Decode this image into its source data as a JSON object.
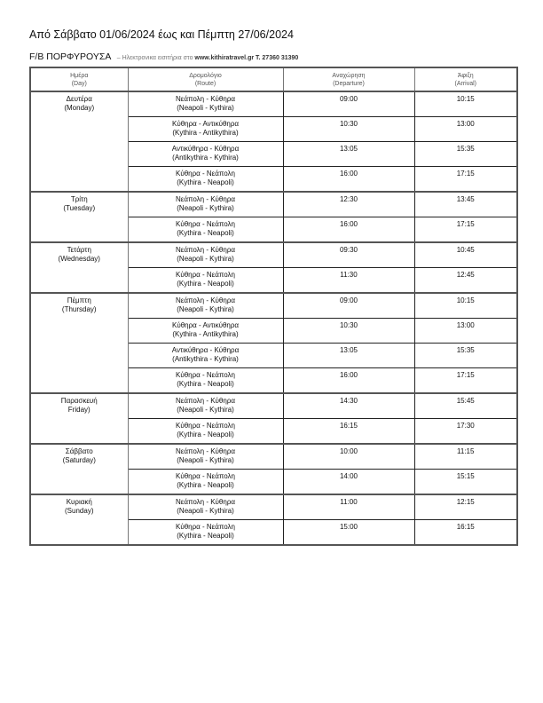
{
  "title": "Από Σάββατο 01/06/2024 έως και Πέμπτη 27/06/2024",
  "vessel": "F/B ΠΟΡΦΥΡΟΥΣΑ",
  "note_prefix": "– Ηλεκτρονικα εισιτήρια στο",
  "note_site": "www.kithiratravel.gr T. 27360 31390",
  "headers": [
    {
      "gr": "Ημέρα",
      "en": "(Day)"
    },
    {
      "gr": "Δρομολόγιο",
      "en": "(Route)"
    },
    {
      "gr": "Αναχώρηση",
      "en": "(Departure)"
    },
    {
      "gr": "Άφιξη",
      "en": "(Arrival)"
    }
  ],
  "days": [
    {
      "gr": "Δευτέρα",
      "en": "(Monday)",
      "trips": [
        {
          "route_gr": "Νεάπολη - Κύθηρα",
          "route_en": "(Neapoli - Kythira)",
          "dep": "09:00",
          "arr": "10:15"
        },
        {
          "route_gr": "Κύθηρα - Αντικύθηρα",
          "route_en": "(Kythira - Antikythira)",
          "dep": "10:30",
          "arr": "13:00"
        },
        {
          "route_gr": "Αντικύθηρα - Κύθηρα",
          "route_en": "(Antikythira - Kythira)",
          "dep": "13:05",
          "arr": "15:35"
        },
        {
          "route_gr": "Κύθηρα - Νεάπολη",
          "route_en": "(Kythira - Neapoli)",
          "dep": "16:00",
          "arr": "17:15"
        }
      ]
    },
    {
      "gr": "Τρίτη",
      "en": "(Tuesday)",
      "trips": [
        {
          "route_gr": "Νεάπολη - Κύθηρα",
          "route_en": "(Neapoli - Kythira)",
          "dep": "12:30",
          "arr": "13:45"
        },
        {
          "route_gr": "Κύθηρα - Νεάπολη",
          "route_en": "(Kythira - Neapoli)",
          "dep": "16:00",
          "arr": "17:15"
        }
      ]
    },
    {
      "gr": "Τετάρτη",
      "en": "(Wednesday)",
      "trips": [
        {
          "route_gr": "Νεάπολη - Κύθηρα",
          "route_en": "(Neapoli - Kythira)",
          "dep": "09:30",
          "arr": "10:45"
        },
        {
          "route_gr": "Κύθηρα - Νεάπολη",
          "route_en": "(Kythira - Neapoli)",
          "dep": "11:30",
          "arr": "12:45"
        }
      ]
    },
    {
      "gr": "Πέμπτη",
      "en": "(Thursday)",
      "trips": [
        {
          "route_gr": "Νεάπολη - Κύθηρα",
          "route_en": "(Neapoli - Kythira)",
          "dep": "09:00",
          "arr": "10:15"
        },
        {
          "route_gr": "Κύθηρα - Αντικύθηρα",
          "route_en": "(Kythira - Antikythira)",
          "dep": "10:30",
          "arr": "13:00"
        },
        {
          "route_gr": "Αντικύθηρα - Κύθηρα",
          "route_en": "(Antikythira - Kythira)",
          "dep": "13:05",
          "arr": "15:35"
        },
        {
          "route_gr": "Κύθηρα - Νεάπολη",
          "route_en": "(Kythira - Neapoli)",
          "dep": "16:00",
          "arr": "17:15"
        }
      ]
    },
    {
      "gr": "Παρασκευή",
      "en": "Friday)",
      "trips": [
        {
          "route_gr": "Νεάπολη - Κύθηρα",
          "route_en": "(Neapoli - Kythira)",
          "dep": "14:30",
          "arr": "15:45"
        },
        {
          "route_gr": "Κύθηρα - Νεάπολη",
          "route_en": "(Kythira - Neapoli)",
          "dep": "16:15",
          "arr": "17:30"
        }
      ]
    },
    {
      "gr": "Σάββατο",
      "en": "(Saturday)",
      "trips": [
        {
          "route_gr": "Νεάπολη - Κύθηρα",
          "route_en": "(Neapoli - Kythira)",
          "dep": "10:00",
          "arr": "11:15"
        },
        {
          "route_gr": "Κύθηρα - Νεάπολη",
          "route_en": "(Kythira - Neapoli)",
          "dep": "14:00",
          "arr": "15:15"
        }
      ]
    },
    {
      "gr": "Κυριακή",
      "en": "(Sunday)",
      "trips": [
        {
          "route_gr": "Νεάπολη - Κύθηρα",
          "route_en": "(Neapoli - Kythira)",
          "dep": "11:00",
          "arr": "12:15"
        },
        {
          "route_gr": "Κύθηρα - Νεάπολη",
          "route_en": "(Kythira - Neapoli)",
          "dep": "15:00",
          "arr": "16:15"
        }
      ]
    }
  ]
}
